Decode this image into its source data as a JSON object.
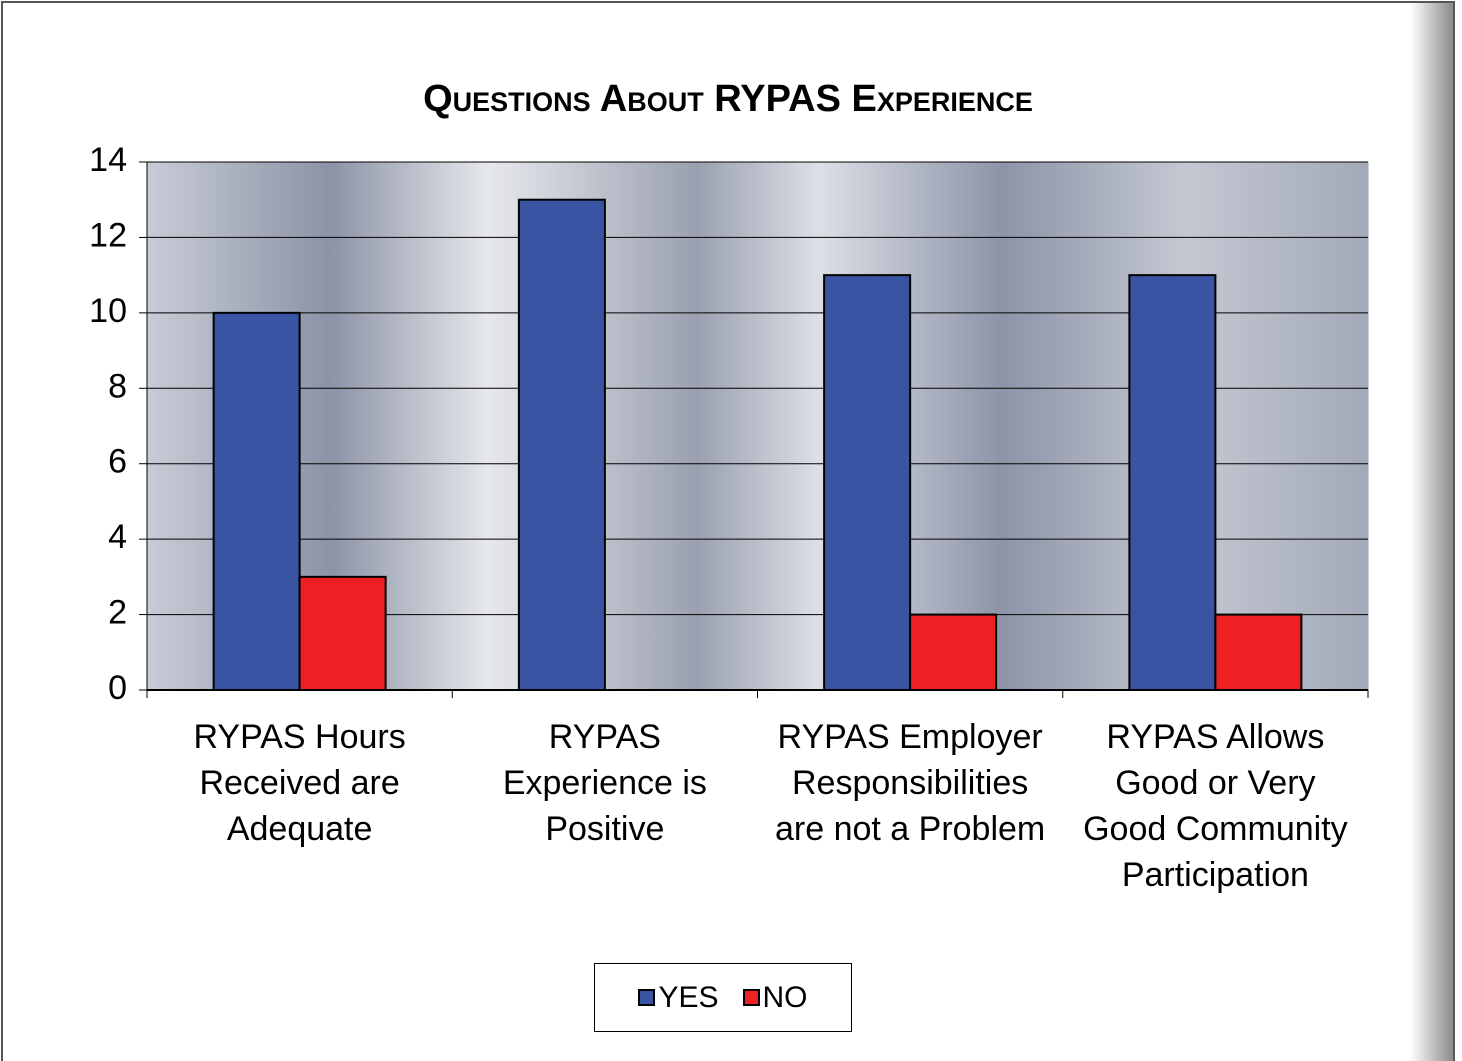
{
  "chart_data": {
    "type": "bar",
    "title": "Questions About RYPAS Experience",
    "categories": [
      "RYPAS Hours Received are Adequate",
      "RYPAS Experience is Positive",
      "RYPAS Employer Responsibilities are not a Problem",
      "RYPAS Allows Good or Very Good Community Participation"
    ],
    "series": [
      {
        "name": "YES",
        "color": "#3a54a4",
        "values": [
          10,
          13,
          11,
          11
        ]
      },
      {
        "name": "NO",
        "color": "#ee2024",
        "values": [
          3,
          0,
          2,
          2
        ]
      }
    ],
    "ylim": [
      0,
      14
    ],
    "yticks": [
      0,
      2,
      4,
      6,
      8,
      10,
      12,
      14
    ],
    "grid": true,
    "legend": "bottom"
  }
}
